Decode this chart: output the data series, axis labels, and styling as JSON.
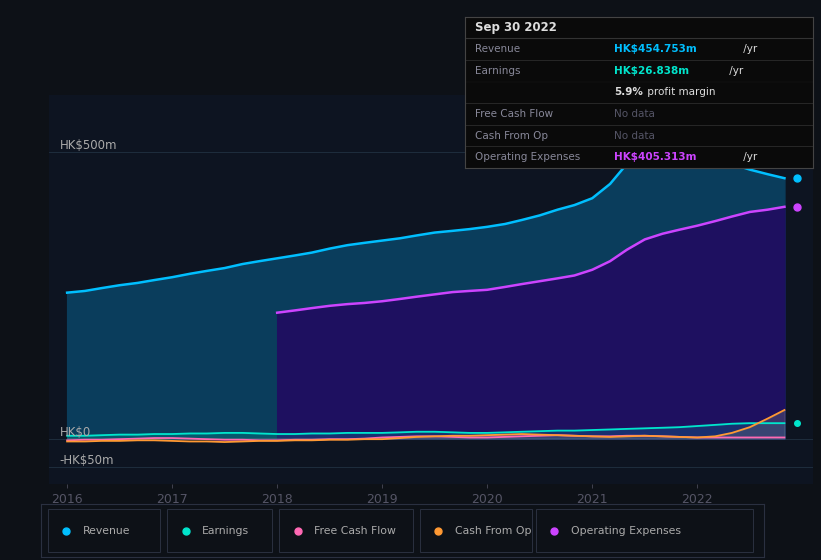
{
  "bg_color": "#0d1117",
  "plot_bg_color": "#0d1421",
  "grid_color": "#1e2d3d",
  "years": [
    2016.0,
    2016.17,
    2016.33,
    2016.5,
    2016.67,
    2016.83,
    2017.0,
    2017.17,
    2017.33,
    2017.5,
    2017.67,
    2017.83,
    2018.0,
    2018.17,
    2018.33,
    2018.5,
    2018.67,
    2018.83,
    2019.0,
    2019.17,
    2019.33,
    2019.5,
    2019.67,
    2019.83,
    2020.0,
    2020.17,
    2020.33,
    2020.5,
    2020.67,
    2020.83,
    2021.0,
    2021.17,
    2021.33,
    2021.5,
    2021.67,
    2021.83,
    2022.0,
    2022.17,
    2022.33,
    2022.5,
    2022.67,
    2022.83
  ],
  "revenue": [
    255,
    258,
    263,
    268,
    272,
    277,
    282,
    288,
    293,
    298,
    305,
    310,
    315,
    320,
    325,
    332,
    338,
    342,
    346,
    350,
    355,
    360,
    363,
    366,
    370,
    375,
    382,
    390,
    400,
    408,
    420,
    445,
    480,
    540,
    535,
    520,
    500,
    490,
    480,
    470,
    462,
    455
  ],
  "op_expenses": [
    0,
    0,
    0,
    0,
    0,
    0,
    0,
    0,
    0,
    0,
    0,
    0,
    220,
    224,
    228,
    232,
    235,
    237,
    240,
    244,
    248,
    252,
    256,
    258,
    260,
    265,
    270,
    275,
    280,
    285,
    295,
    310,
    330,
    348,
    358,
    365,
    372,
    380,
    388,
    396,
    400,
    405
  ],
  "earnings": [
    5,
    5,
    6,
    7,
    7,
    8,
    8,
    9,
    9,
    10,
    10,
    9,
    8,
    8,
    9,
    9,
    10,
    10,
    10,
    11,
    12,
    12,
    11,
    10,
    10,
    11,
    12,
    13,
    14,
    14,
    15,
    16,
    17,
    18,
    19,
    20,
    22,
    24,
    26,
    27,
    27,
    27
  ],
  "free_cash_flow": [
    -3,
    -2,
    -2,
    -1,
    0,
    1,
    1,
    0,
    -1,
    -2,
    -2,
    -3,
    -3,
    -2,
    -2,
    -1,
    -1,
    0,
    2,
    3,
    4,
    4,
    3,
    2,
    2,
    3,
    4,
    5,
    6,
    5,
    4,
    4,
    5,
    5,
    4,
    3,
    2,
    2,
    2,
    2,
    2,
    2
  ],
  "cash_from_op": [
    -5,
    -5,
    -4,
    -4,
    -3,
    -3,
    -4,
    -5,
    -5,
    -6,
    -5,
    -4,
    -4,
    -3,
    -3,
    -2,
    -2,
    -1,
    -1,
    1,
    3,
    4,
    5,
    5,
    6,
    7,
    8,
    7,
    6,
    5,
    4,
    3,
    4,
    5,
    4,
    3,
    2,
    4,
    10,
    20,
    35,
    50
  ],
  "revenue_color": "#00bfff",
  "revenue_fill": "#0a3d5c",
  "op_expenses_color": "#cc44ff",
  "op_expenses_fill": "#1e1060",
  "earnings_color": "#00e5cc",
  "free_cash_flow_color": "#ff69b4",
  "cash_from_op_color": "#ff9933",
  "earnings_fill_color": "#00e5cc",
  "cash_fill_color": "#666677",
  "tooltip_bg": "#0a0a0a",
  "tooltip_border": "#333333",
  "tooltip_title": "Sep 30 2022",
  "tooltip_revenue_label": "Revenue",
  "tooltip_revenue_val": "HK$454.753m",
  "tooltip_revenue_color": "#00bfff",
  "tooltip_earnings_label": "Earnings",
  "tooltip_earnings_val": "HK$26.838m",
  "tooltip_earnings_color": "#00e5cc",
  "tooltip_margin_bold": "5.9%",
  "tooltip_margin_rest": " profit margin",
  "tooltip_fcf_label": "Free Cash Flow",
  "tooltip_fcf_val": "No data",
  "tooltip_cashop_label": "Cash From Op",
  "tooltip_cashop_val": "No data",
  "tooltip_opex_label": "Operating Expenses",
  "tooltip_opex_val": "HK$405.313m",
  "tooltip_opex_color": "#cc44ff",
  "legend_labels": [
    "Revenue",
    "Earnings",
    "Free Cash Flow",
    "Cash From Op",
    "Operating Expenses"
  ],
  "legend_colors": [
    "#00bfff",
    "#00e5cc",
    "#ff69b4",
    "#ff9933",
    "#cc44ff"
  ],
  "xmin": 2015.83,
  "xmax": 2023.1,
  "ymin": -80,
  "ymax": 600,
  "xticks": [
    2016,
    2017,
    2018,
    2019,
    2020,
    2021,
    2022
  ]
}
